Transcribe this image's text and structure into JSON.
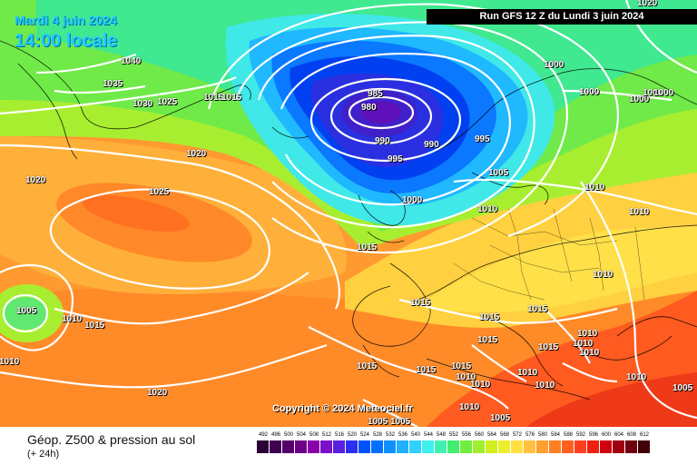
{
  "header": {
    "date": "Mardi 4 juin 2024",
    "local_time": "14:00 locale",
    "run": "Run GFS 12 Z du Lundi 3 juin 2024"
  },
  "copyright": "Copyright © 2024 Meteociel.fr",
  "footer": {
    "title": "Géop. Z500 & pression au sol",
    "subtitle": "(+ 24h)"
  },
  "legend": {
    "values": [
      "492",
      "496",
      "500",
      "504",
      "508",
      "512",
      "516",
      "520",
      "524",
      "528",
      "532",
      "536",
      "540",
      "544",
      "548",
      "552",
      "556",
      "560",
      "564",
      "568",
      "572",
      "576",
      "580",
      "584",
      "588",
      "592",
      "596",
      "600",
      "604",
      "608",
      "612"
    ],
    "colors": [
      "#2a0036",
      "#3f0050",
      "#55006a",
      "#6e0088",
      "#8a00a8",
      "#7a10c8",
      "#5a20e0",
      "#2a30f0",
      "#0050ff",
      "#0070ff",
      "#1090ff",
      "#20b0ff",
      "#30d0ff",
      "#40f0f0",
      "#40f0b0",
      "#40ee70",
      "#70ee40",
      "#a0ee30",
      "#d0ee20",
      "#eeee30",
      "#ffe040",
      "#ffc040",
      "#ffa030",
      "#ff8020",
      "#ff6020",
      "#ff4020",
      "#ee2010",
      "#d00010",
      "#a00010",
      "#700010",
      "#400008"
    ]
  },
  "isobar_labels": [
    {
      "text": "1020"
    },
    {
      "text": "1040"
    },
    {
      "text": "1035"
    },
    {
      "text": "1030"
    },
    {
      "text": "1025"
    },
    {
      "text": "1015"
    },
    {
      "text": "1015"
    },
    {
      "text": "985"
    },
    {
      "text": "980"
    },
    {
      "text": "990"
    },
    {
      "text": "990"
    },
    {
      "text": "995"
    },
    {
      "text": "995"
    },
    {
      "text": "1000"
    },
    {
      "text": "1000"
    },
    {
      "text": "1000"
    },
    {
      "text": "1000"
    },
    {
      "text": "1020"
    },
    {
      "text": "1020"
    },
    {
      "text": "1025"
    },
    {
      "text": "1005"
    },
    {
      "text": "1010"
    },
    {
      "text": "1010"
    },
    {
      "text": "1015"
    },
    {
      "text": "1005"
    },
    {
      "text": "1010"
    },
    {
      "text": "1015"
    },
    {
      "text": "1015"
    },
    {
      "text": "1015"
    },
    {
      "text": "1015"
    },
    {
      "text": "1015"
    },
    {
      "text": "1010"
    },
    {
      "text": "1010"
    },
    {
      "text": "1010"
    },
    {
      "text": "1010"
    },
    {
      "text": "1010"
    },
    {
      "text": "1010"
    },
    {
      "text": "1010"
    },
    {
      "text": "1015"
    },
    {
      "text": "1015"
    },
    {
      "text": "1010"
    },
    {
      "text": "1005"
    },
    {
      "text": "1005"
    },
    {
      "text": "1005"
    },
    {
      "text": "1020"
    },
    {
      "text": "1010"
    },
    {
      "text": "1015"
    },
    {
      "text": "1010"
    },
    {
      "text": "1015"
    },
    {
      "text": "1010"
    },
    {
      "text": "1005"
    },
    {
      "text": "1010"
    },
    {
      "text": "1000"
    },
    {
      "text": "1000"
    }
  ]
}
